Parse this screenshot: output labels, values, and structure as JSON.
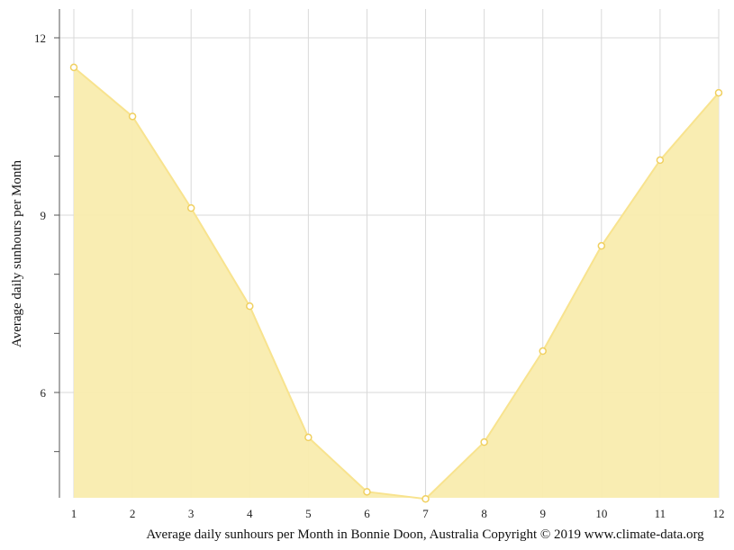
{
  "chart_data": {
    "type": "area",
    "x": [
      1,
      2,
      3,
      4,
      5,
      6,
      7,
      8,
      9,
      10,
      11,
      12
    ],
    "series": [
      {
        "values": [
          11.5,
          10.67,
          9.12,
          7.46,
          5.24,
          4.32,
          4.2,
          5.16,
          6.7,
          8.48,
          9.93,
          11.07
        ]
      }
    ],
    "xlim": [
      1,
      12
    ],
    "ylim": [
      4.2,
      12.5
    ],
    "yticks": [
      6,
      9,
      12
    ],
    "ylabel": "Average daily sunhours per Month",
    "xlabel": "Average daily sunhours per Month in Bonnie Doon, Australia Copyright © 2019 www.climate-data.org",
    "grid": true,
    "fill_color": "#f9ecae",
    "line_color": "#f8e38e",
    "marker_fill": "#ffffff",
    "marker_stroke": "#f0d060"
  }
}
